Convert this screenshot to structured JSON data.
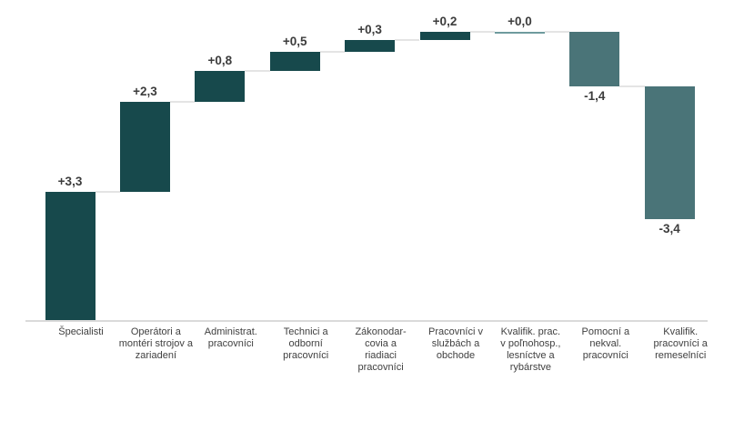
{
  "chart_data": {
    "type": "bar",
    "subtype": "waterfall",
    "title": "",
    "xlabel": "",
    "ylabel": "",
    "grid": false,
    "legend": "none",
    "categories": [
      "Špecialisti",
      "Operátori a montéri strojov a zariadení",
      "Administrat. pracovníci",
      "Technici a odborní pracovníci",
      "Zákonodarcovia a riadiaci pracovníci",
      "Pracovníci v službách a obchode",
      "Kvalifik. prac. v poľnohosp., lesníctve a rybárstve",
      "Pomocní a nekval. pracovníci",
      "Kvalifik. pracovníci a remeselníci"
    ],
    "category_lines": [
      [
        "Špecialisti"
      ],
      [
        "Operátori a",
        "montéri strojov a",
        "zariadení"
      ],
      [
        "Administrat.",
        "pracovníci"
      ],
      [
        "Technici a",
        "odborní",
        "pracovníci"
      ],
      [
        "Zákonodar-",
        "covia a",
        "riadiaci",
        "pracovníci"
      ],
      [
        "Pracovníci v",
        "službách a",
        "obchode"
      ],
      [
        "Kvalifik. prac.",
        "v poľnohosp.,",
        "lesníctve a",
        "rybárstve"
      ],
      [
        "Pomocní a",
        "nekval.",
        "pracovníci"
      ],
      [
        "Kvalifik.",
        "pracovníci a",
        "remeselníci"
      ]
    ],
    "values": [
      3.3,
      2.3,
      0.8,
      0.5,
      0.3,
      0.2,
      0.0,
      -1.4,
      -3.4
    ],
    "value_labels": [
      "+3,3",
      "+2,3",
      "+0,8",
      "+0,5",
      "+0,3",
      "+0,2",
      "+0,0",
      "-1,4",
      "-3,4"
    ],
    "cumulative": [
      3.3,
      5.6,
      6.4,
      6.9,
      7.2,
      7.4,
      7.4,
      6.0,
      2.6
    ],
    "baseline_value": 0,
    "ylim": [
      0,
      7.4
    ],
    "colors": {
      "positive": "#17494c",
      "negative": "#4a7478",
      "zero": "#6f9b9e",
      "connector": "#e4e4e4",
      "axis": "#dadada",
      "value_label": "#3c3c3c",
      "category_label": "#404040",
      "background": "#ffffff"
    }
  }
}
